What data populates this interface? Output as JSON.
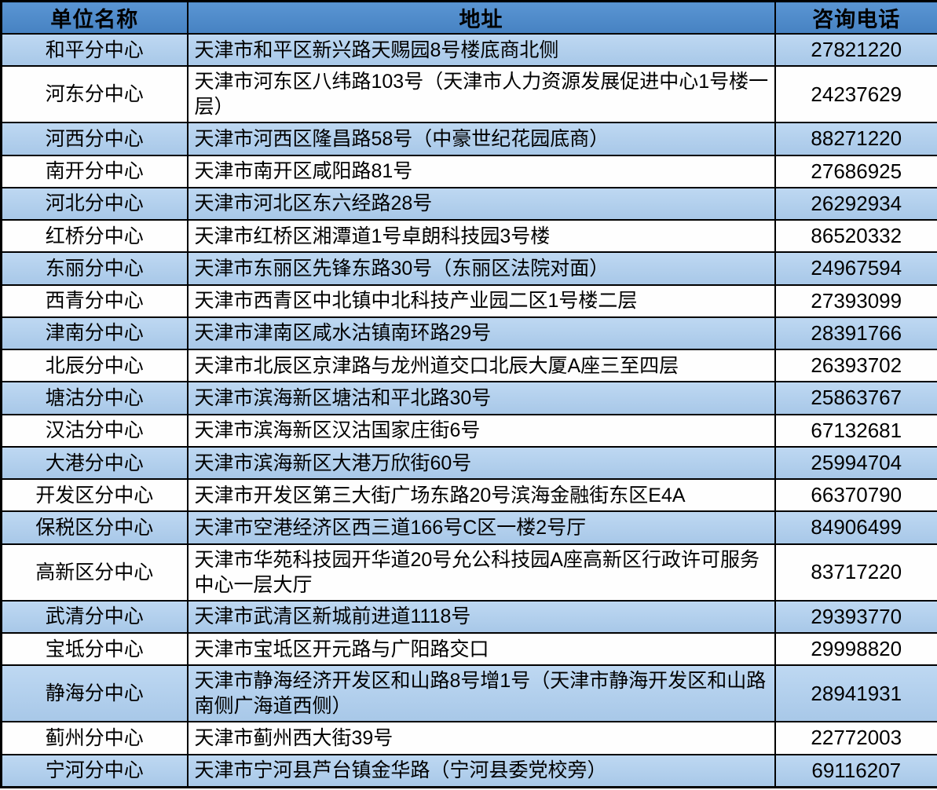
{
  "palette": {
    "header_blue": "#4d8bca",
    "row_blue_top": "#bed8f2",
    "row_blue_bottom": "#a8c8e8",
    "row_white": "#fefefe",
    "border_black": "#000000",
    "text_black": "#000000"
  },
  "table": {
    "columns": {
      "name": "单位名称",
      "address": "地址",
      "phone": "咨询电话"
    },
    "rows": [
      {
        "name": "和平分中心",
        "address": "天津市和平区新兴路天赐园8号楼底商北侧",
        "phone": "27821220"
      },
      {
        "name": "河东分中心",
        "address": "天津市河东区八纬路103号（天津市人力资源发展促进中心1号楼一层）",
        "phone": "24237629"
      },
      {
        "name": "河西分中心",
        "address": "天津市河西区隆昌路58号（中豪世纪花园底商）",
        "phone": "88271220"
      },
      {
        "name": "南开分中心",
        "address": "天津市南开区咸阳路81号",
        "phone": "27686925"
      },
      {
        "name": "河北分中心",
        "address": "天津市河北区东六经路28号",
        "phone": "26292934"
      },
      {
        "name": "红桥分中心",
        "address": "天津市红桥区湘潭道1号卓朗科技园3号楼",
        "phone": "86520332"
      },
      {
        "name": "东丽分中心",
        "address": "天津市东丽区先锋东路30号（东丽区法院对面）",
        "phone": "24967594"
      },
      {
        "name": "西青分中心",
        "address": "天津市西青区中北镇中北科技产业园二区1号楼二层",
        "phone": "27393099"
      },
      {
        "name": "津南分中心",
        "address": "天津市津南区咸水沽镇南环路29号",
        "phone": "28391766"
      },
      {
        "name": "北辰分中心",
        "address": "天津市北辰区京津路与龙州道交口北辰大厦A座三至四层",
        "phone": "26393702"
      },
      {
        "name": "塘沽分中心",
        "address": "天津市滨海新区塘沽和平北路30号",
        "phone": "25863767"
      },
      {
        "name": "汉沽分中心",
        "address": "天津市滨海新区汉沽国家庄街6号",
        "phone": "67132681"
      },
      {
        "name": "大港分中心",
        "address": "天津市滨海新区大港万欣街60号",
        "phone": "25994704"
      },
      {
        "name": "开发区分中心",
        "address": "天津市开发区第三大街广场东路20号滨海金融街东区E4A",
        "phone": "66370790"
      },
      {
        "name": "保税区分中心",
        "address": "天津市空港经济区西三道166号C区一楼2号厅",
        "phone": "84906499"
      },
      {
        "name": "高新区分中心",
        "address": "天津市华苑科技园开华道20号允公科技园A座高新区行政许可服务中心一层大厅",
        "phone": "83717220"
      },
      {
        "name": "武清分中心",
        "address": "天津市武清区新城前进道1118号",
        "phone": "29393770"
      },
      {
        "name": "宝坻分中心",
        "address": "天津市宝坻区开元路与广阳路交口",
        "phone": "29998820"
      },
      {
        "name": "静海分中心",
        "address": "天津市静海经济开发区和山路8号增1号（天津市静海开发区和山路南侧广海道西侧）",
        "phone": "28941931"
      },
      {
        "name": "蓟州分中心",
        "address": "天津市蓟州西大街39号",
        "phone": "22772003"
      },
      {
        "name": "宁河分中心",
        "address": "天津市宁河县芦台镇金华路（宁河县委党校旁）",
        "phone": "69116207"
      }
    ]
  }
}
